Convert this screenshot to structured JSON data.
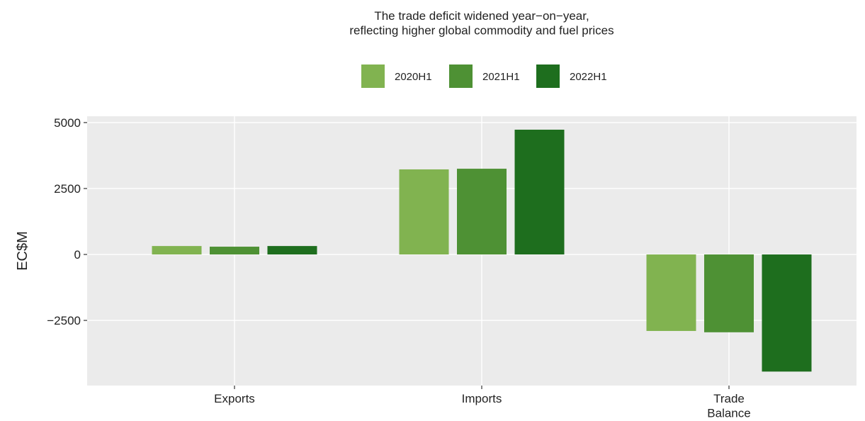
{
  "chart_data": {
    "type": "bar",
    "title": "The trade deficit widened year−on−year,\nreflecting higher global commodity and fuel prices",
    "y_label": "EC$M",
    "categories": [
      "Exports",
      "Imports",
      "Trade\nBalance"
    ],
    "series": [
      {
        "name": "2020H1",
        "color": "#81b350",
        "values": [
          320,
          3225,
          -2900
        ]
      },
      {
        "name": "2021H1",
        "color": "#4e9134",
        "values": [
          295,
          3250,
          -2950
        ]
      },
      {
        "name": "2022H1",
        "color": "#1e6e1e",
        "values": [
          320,
          4730,
          -4440
        ]
      }
    ],
    "ylim": [
      -4970,
      5240
    ],
    "yticks": [
      {
        "value": -2500,
        "label": "−2500"
      },
      0,
      2500,
      5000
    ],
    "grid": true,
    "legend": "top"
  }
}
